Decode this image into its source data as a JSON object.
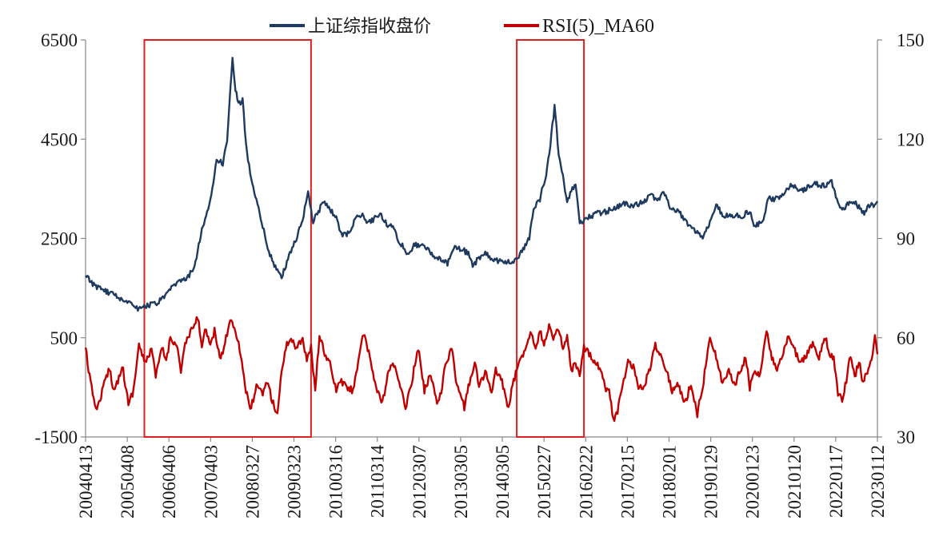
{
  "chart_data": {
    "type": "line",
    "title": "",
    "legend": {
      "position": "top-center",
      "entries": [
        {
          "name": "上证综指收盘价",
          "color": "#1f3a5f",
          "axis": "left"
        },
        {
          "name": "RSI(5)_MA60",
          "color": "#c00000",
          "axis": "right"
        }
      ]
    },
    "x_axis": {
      "tick_labels": [
        "20040413",
        "20050408",
        "20060406",
        "20070403",
        "20080327",
        "20090323",
        "20100316",
        "20110314",
        "20120307",
        "20130305",
        "20140305",
        "20150227",
        "20160222",
        "20170215",
        "20180201",
        "20190129",
        "20200123",
        "20210120",
        "20220117",
        "20230112"
      ],
      "start_year": 2004.28,
      "end_year": 2023.14
    },
    "y_left": {
      "min": -1500,
      "max": 6500,
      "ticks": [
        "6500",
        "4500",
        "2500",
        "500",
        "-1500"
      ]
    },
    "y_right": {
      "min": 30,
      "max": 150,
      "ticks": [
        "150",
        "120",
        "90",
        "60",
        "30"
      ]
    },
    "series": [
      {
        "name": "上证综指收盘价",
        "axis": "left",
        "points": [
          [
            2004.28,
            1750
          ],
          [
            2004.45,
            1580
          ],
          [
            2004.7,
            1450
          ],
          [
            2004.9,
            1400
          ],
          [
            2005.1,
            1300
          ],
          [
            2005.3,
            1230
          ],
          [
            2005.42,
            1160
          ],
          [
            2005.55,
            1080
          ],
          [
            2005.75,
            1150
          ],
          [
            2005.95,
            1180
          ],
          [
            2006.15,
            1300
          ],
          [
            2006.35,
            1520
          ],
          [
            2006.5,
            1620
          ],
          [
            2006.7,
            1690
          ],
          [
            2006.9,
            2000
          ],
          [
            2007.05,
            2700
          ],
          [
            2007.15,
            2900
          ],
          [
            2007.3,
            3500
          ],
          [
            2007.4,
            4100
          ],
          [
            2007.55,
            4000
          ],
          [
            2007.65,
            4500
          ],
          [
            2007.78,
            6100
          ],
          [
            2007.85,
            5500
          ],
          [
            2007.92,
            5200
          ],
          [
            2008.02,
            5300
          ],
          [
            2008.1,
            4400
          ],
          [
            2008.2,
            3800
          ],
          [
            2008.35,
            3300
          ],
          [
            2008.5,
            2750
          ],
          [
            2008.62,
            2300
          ],
          [
            2008.75,
            2000
          ],
          [
            2008.85,
            1850
          ],
          [
            2008.95,
            1700
          ],
          [
            2009.1,
            2100
          ],
          [
            2009.3,
            2500
          ],
          [
            2009.45,
            2900
          ],
          [
            2009.58,
            3400
          ],
          [
            2009.7,
            2850
          ],
          [
            2009.8,
            3000
          ],
          [
            2009.95,
            3250
          ],
          [
            2010.1,
            3100
          ],
          [
            2010.25,
            2900
          ],
          [
            2010.4,
            2550
          ],
          [
            2010.55,
            2600
          ],
          [
            2010.7,
            2900
          ],
          [
            2010.85,
            3000
          ],
          [
            2011.0,
            2800
          ],
          [
            2011.15,
            2900
          ],
          [
            2011.3,
            3000
          ],
          [
            2011.45,
            2800
          ],
          [
            2011.6,
            2700
          ],
          [
            2011.75,
            2450
          ],
          [
            2011.95,
            2200
          ],
          [
            2012.1,
            2350
          ],
          [
            2012.3,
            2400
          ],
          [
            2012.5,
            2200
          ],
          [
            2012.7,
            2100
          ],
          [
            2012.9,
            2000
          ],
          [
            2013.05,
            2350
          ],
          [
            2013.2,
            2300
          ],
          [
            2013.4,
            2200
          ],
          [
            2013.5,
            1950
          ],
          [
            2013.65,
            2100
          ],
          [
            2013.8,
            2200
          ],
          [
            2014.0,
            2050
          ],
          [
            2014.2,
            2050
          ],
          [
            2014.4,
            2020
          ],
          [
            2014.55,
            2100
          ],
          [
            2014.7,
            2300
          ],
          [
            2014.85,
            2500
          ],
          [
            2014.95,
            3100
          ],
          [
            2015.1,
            3300
          ],
          [
            2015.25,
            3800
          ],
          [
            2015.35,
            4400
          ],
          [
            2015.45,
            5150
          ],
          [
            2015.55,
            4200
          ],
          [
            2015.65,
            3800
          ],
          [
            2015.75,
            3200
          ],
          [
            2015.85,
            3500
          ],
          [
            2015.95,
            3550
          ],
          [
            2016.05,
            2800
          ],
          [
            2016.2,
            2900
          ],
          [
            2016.45,
            3000
          ],
          [
            2016.7,
            3050
          ],
          [
            2016.95,
            3150
          ],
          [
            2017.15,
            3200
          ],
          [
            2017.35,
            3150
          ],
          [
            2017.55,
            3250
          ],
          [
            2017.75,
            3350
          ],
          [
            2017.95,
            3300
          ],
          [
            2018.05,
            3450
          ],
          [
            2018.2,
            3150
          ],
          [
            2018.4,
            3050
          ],
          [
            2018.6,
            2800
          ],
          [
            2018.8,
            2650
          ],
          [
            2018.98,
            2550
          ],
          [
            2019.15,
            2800
          ],
          [
            2019.3,
            3150
          ],
          [
            2019.5,
            2950
          ],
          [
            2019.7,
            2950
          ],
          [
            2019.9,
            2950
          ],
          [
            2020.1,
            3050
          ],
          [
            2020.2,
            2750
          ],
          [
            2020.4,
            2850
          ],
          [
            2020.55,
            3300
          ],
          [
            2020.75,
            3300
          ],
          [
            2020.95,
            3450
          ],
          [
            2021.1,
            3600
          ],
          [
            2021.3,
            3450
          ],
          [
            2021.5,
            3550
          ],
          [
            2021.7,
            3600
          ],
          [
            2021.9,
            3550
          ],
          [
            2022.05,
            3650
          ],
          [
            2022.15,
            3350
          ],
          [
            2022.3,
            3050
          ],
          [
            2022.45,
            3200
          ],
          [
            2022.6,
            3250
          ],
          [
            2022.8,
            3000
          ],
          [
            2022.95,
            3150
          ],
          [
            2023.05,
            3180
          ],
          [
            2023.14,
            3250
          ]
        ]
      },
      {
        "name": "RSI(5)_MA60",
        "axis": "right",
        "points": [
          [
            2004.28,
            57
          ],
          [
            2004.4,
            46
          ],
          [
            2004.55,
            38
          ],
          [
            2004.7,
            45
          ],
          [
            2004.85,
            51
          ],
          [
            2004.95,
            44
          ],
          [
            2005.05,
            47
          ],
          [
            2005.15,
            52
          ],
          [
            2005.3,
            40
          ],
          [
            2005.42,
            44
          ],
          [
            2005.55,
            58
          ],
          [
            2005.7,
            52
          ],
          [
            2005.85,
            57
          ],
          [
            2005.95,
            48
          ],
          [
            2006.1,
            57
          ],
          [
            2006.2,
            53
          ],
          [
            2006.3,
            60
          ],
          [
            2006.45,
            58
          ],
          [
            2006.55,
            50
          ],
          [
            2006.65,
            58
          ],
          [
            2006.8,
            62
          ],
          [
            2006.95,
            66
          ],
          [
            2007.05,
            58
          ],
          [
            2007.15,
            63
          ],
          [
            2007.25,
            57
          ],
          [
            2007.35,
            62
          ],
          [
            2007.5,
            53
          ],
          [
            2007.6,
            59
          ],
          [
            2007.75,
            66
          ],
          [
            2007.9,
            60
          ],
          [
            2008.0,
            53
          ],
          [
            2008.1,
            44
          ],
          [
            2008.2,
            38
          ],
          [
            2008.35,
            45
          ],
          [
            2008.5,
            43
          ],
          [
            2008.6,
            47
          ],
          [
            2008.75,
            40
          ],
          [
            2008.85,
            37
          ],
          [
            2008.95,
            50
          ],
          [
            2009.05,
            57
          ],
          [
            2009.15,
            60
          ],
          [
            2009.3,
            57
          ],
          [
            2009.45,
            60
          ],
          [
            2009.55,
            53
          ],
          [
            2009.65,
            57
          ],
          [
            2009.75,
            44
          ],
          [
            2009.85,
            61
          ],
          [
            2009.95,
            56
          ],
          [
            2010.1,
            52
          ],
          [
            2010.25,
            44
          ],
          [
            2010.35,
            47
          ],
          [
            2010.5,
            45
          ],
          [
            2010.65,
            44
          ],
          [
            2010.8,
            55
          ],
          [
            2010.9,
            61
          ],
          [
            2011.05,
            54
          ],
          [
            2011.2,
            45
          ],
          [
            2011.35,
            40
          ],
          [
            2011.5,
            50
          ],
          [
            2011.65,
            52
          ],
          [
            2011.75,
            46
          ],
          [
            2011.9,
            39
          ],
          [
            2012.05,
            47
          ],
          [
            2012.2,
            57
          ],
          [
            2012.35,
            44
          ],
          [
            2012.5,
            49
          ],
          [
            2012.65,
            41
          ],
          [
            2012.75,
            43
          ],
          [
            2012.85,
            52
          ],
          [
            2013.0,
            57
          ],
          [
            2013.1,
            47
          ],
          [
            2013.3,
            39
          ],
          [
            2013.4,
            45
          ],
          [
            2013.55,
            53
          ],
          [
            2013.65,
            45
          ],
          [
            2013.8,
            50
          ],
          [
            2013.95,
            43
          ],
          [
            2014.05,
            50
          ],
          [
            2014.2,
            47
          ],
          [
            2014.35,
            38
          ],
          [
            2014.45,
            46
          ],
          [
            2014.6,
            52
          ],
          [
            2014.75,
            57
          ],
          [
            2014.9,
            62
          ],
          [
            2015.0,
            57
          ],
          [
            2015.1,
            62
          ],
          [
            2015.2,
            58
          ],
          [
            2015.32,
            64
          ],
          [
            2015.42,
            59
          ],
          [
            2015.55,
            63
          ],
          [
            2015.65,
            56
          ],
          [
            2015.75,
            60
          ],
          [
            2015.85,
            50
          ],
          [
            2015.95,
            52
          ],
          [
            2016.05,
            48
          ],
          [
            2016.15,
            57
          ],
          [
            2016.3,
            55
          ],
          [
            2016.45,
            52
          ],
          [
            2016.55,
            51
          ],
          [
            2016.65,
            45
          ],
          [
            2016.75,
            44
          ],
          [
            2016.85,
            35
          ],
          [
            2016.95,
            38
          ],
          [
            2017.1,
            47
          ],
          [
            2017.2,
            53
          ],
          [
            2017.35,
            51
          ],
          [
            2017.45,
            44
          ],
          [
            2017.6,
            46
          ],
          [
            2017.75,
            52
          ],
          [
            2017.85,
            58
          ],
          [
            2018.0,
            54
          ],
          [
            2018.1,
            51
          ],
          [
            2018.25,
            44
          ],
          [
            2018.4,
            46
          ],
          [
            2018.55,
            40
          ],
          [
            2018.7,
            46
          ],
          [
            2018.85,
            37
          ],
          [
            2019.0,
            47
          ],
          [
            2019.15,
            61
          ],
          [
            2019.3,
            54
          ],
          [
            2019.45,
            46
          ],
          [
            2019.6,
            50
          ],
          [
            2019.75,
            46
          ],
          [
            2019.9,
            51
          ],
          [
            2020.0,
            54
          ],
          [
            2020.1,
            45
          ],
          [
            2020.2,
            50
          ],
          [
            2020.35,
            49
          ],
          [
            2020.5,
            62
          ],
          [
            2020.6,
            55
          ],
          [
            2020.75,
            50
          ],
          [
            2020.9,
            55
          ],
          [
            2021.0,
            60
          ],
          [
            2021.15,
            57
          ],
          [
            2021.3,
            52
          ],
          [
            2021.45,
            55
          ],
          [
            2021.6,
            58
          ],
          [
            2021.75,
            54
          ],
          [
            2021.9,
            60
          ],
          [
            2022.0,
            55
          ],
          [
            2022.1,
            54
          ],
          [
            2022.2,
            43
          ],
          [
            2022.3,
            41
          ],
          [
            2022.4,
            47
          ],
          [
            2022.5,
            55
          ],
          [
            2022.6,
            48
          ],
          [
            2022.7,
            53
          ],
          [
            2022.8,
            46
          ],
          [
            2022.9,
            50
          ],
          [
            2023.0,
            54
          ],
          [
            2023.08,
            60
          ],
          [
            2023.14,
            55
          ]
        ]
      }
    ],
    "annotations": [
      {
        "type": "box",
        "label": "",
        "color": "#e02020",
        "x_start": 2005.68,
        "x_end": 2009.65
      },
      {
        "type": "box",
        "label": "",
        "color": "#e02020",
        "x_start": 2014.55,
        "x_end": 2016.15
      }
    ]
  }
}
